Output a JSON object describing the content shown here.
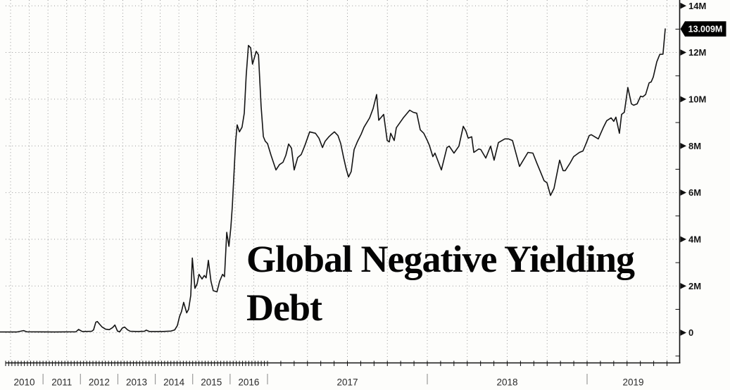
{
  "title": "Global Negative Yielding\nDebt",
  "last_price": {
    "label": "13.009M",
    "value": 13.009
  },
  "colors": {
    "background": "#fdfdfb",
    "line": "#141414",
    "grid": "#979797",
    "axis": "#111111",
    "flag_bg": "#000000",
    "flag_text": "#ffffff",
    "year_separator": "#9a9a9a"
  },
  "y_axis": {
    "major_ticks": [
      {
        "v": 0,
        "label": "0"
      },
      {
        "v": 2,
        "label": "2M"
      },
      {
        "v": 4,
        "label": "4M"
      },
      {
        "v": 6,
        "label": "6M"
      },
      {
        "v": 8,
        "label": "8M"
      },
      {
        "v": 10,
        "label": "10M"
      },
      {
        "v": 12,
        "label": "12M"
      },
      {
        "v": 14,
        "label": "14M"
      }
    ],
    "minor_tick_values": [
      -1,
      1,
      3,
      5,
      7,
      9,
      11,
      13
    ]
  },
  "x_axis": {
    "years": [
      "2010",
      "2011",
      "2012",
      "2013",
      "2014",
      "2015",
      "2016",
      "2017",
      "2018",
      "2019"
    ]
  },
  "chart_data": {
    "type": "line",
    "title": "Global Negative Yielding Debt",
    "ylabel": "",
    "xlabel": "",
    "unit": "M",
    "ylim": [
      -1.3,
      14.25
    ],
    "xlim": [
      2009.85,
      2019.58
    ],
    "grid": "dotted",
    "legend": "none",
    "scale_note": "x compressed before 2017, expanded 2017-2019",
    "last_price": {
      "label": "13.009M",
      "value": 13.009
    },
    "series": [
      {
        "name": "Global Negative Yielding Debt",
        "points": [
          [
            2009.85,
            0.03
          ],
          [
            2010.3,
            0.03
          ],
          [
            2010.48,
            0.09
          ],
          [
            2010.56,
            0.04
          ],
          [
            2011.3,
            0.03
          ],
          [
            2011.88,
            0.04
          ],
          [
            2011.95,
            0.14
          ],
          [
            2012.05,
            0.05
          ],
          [
            2012.3,
            0.06
          ],
          [
            2012.35,
            0.12
          ],
          [
            2012.41,
            0.45
          ],
          [
            2012.45,
            0.48
          ],
          [
            2012.52,
            0.35
          ],
          [
            2012.58,
            0.24
          ],
          [
            2012.67,
            0.15
          ],
          [
            2012.77,
            0.13
          ],
          [
            2012.86,
            0.22
          ],
          [
            2012.92,
            0.33
          ],
          [
            2012.99,
            0.07
          ],
          [
            2013.05,
            0.04
          ],
          [
            2013.12,
            0.2
          ],
          [
            2013.18,
            0.24
          ],
          [
            2013.26,
            0.12
          ],
          [
            2013.33,
            0.06
          ],
          [
            2013.52,
            0.05
          ],
          [
            2013.71,
            0.06
          ],
          [
            2013.76,
            0.11
          ],
          [
            2013.84,
            0.05
          ],
          [
            2014.18,
            0.05
          ],
          [
            2014.42,
            0.07
          ],
          [
            2014.52,
            0.12
          ],
          [
            2014.59,
            0.3
          ],
          [
            2014.65,
            0.7
          ],
          [
            2014.7,
            0.9
          ],
          [
            2014.76,
            1.3
          ],
          [
            2014.84,
            0.85
          ],
          [
            2014.89,
            1.0
          ],
          [
            2014.95,
            1.6
          ],
          [
            2014.99,
            3.2
          ],
          [
            2015.06,
            1.9
          ],
          [
            2015.12,
            2.1
          ],
          [
            2015.17,
            2.5
          ],
          [
            2015.25,
            2.3
          ],
          [
            2015.31,
            2.45
          ],
          [
            2015.36,
            2.35
          ],
          [
            2015.42,
            3.1
          ],
          [
            2015.49,
            2.2
          ],
          [
            2015.55,
            1.8
          ],
          [
            2015.65,
            1.75
          ],
          [
            2015.72,
            2.2
          ],
          [
            2015.8,
            2.5
          ],
          [
            2015.85,
            2.4
          ],
          [
            2015.91,
            4.3
          ],
          [
            2015.97,
            3.7
          ],
          [
            2016.02,
            4.5
          ],
          [
            2016.06,
            5.4
          ],
          [
            2016.12,
            7.3
          ],
          [
            2016.15,
            8.2
          ],
          [
            2016.19,
            8.9
          ],
          [
            2016.25,
            8.6
          ],
          [
            2016.32,
            8.8
          ],
          [
            2016.38,
            9.4
          ],
          [
            2016.43,
            11.0
          ],
          [
            2016.49,
            12.3
          ],
          [
            2016.55,
            12.2
          ],
          [
            2016.6,
            11.5
          ],
          [
            2016.7,
            12.05
          ],
          [
            2016.76,
            11.9
          ],
          [
            2016.83,
            9.7
          ],
          [
            2016.89,
            8.4
          ],
          [
            2016.94,
            8.2
          ],
          [
            2017.0,
            8.1
          ],
          [
            2017.022,
            7.6
          ],
          [
            2017.053,
            6.97
          ],
          [
            2017.075,
            7.2
          ],
          [
            2017.097,
            7.3
          ],
          [
            2017.115,
            7.6
          ],
          [
            2017.132,
            8.08
          ],
          [
            2017.15,
            7.9
          ],
          [
            2017.167,
            6.97
          ],
          [
            2017.189,
            7.5
          ],
          [
            2017.211,
            7.63
          ],
          [
            2017.233,
            8.0
          ],
          [
            2017.264,
            8.6
          ],
          [
            2017.3,
            8.54
          ],
          [
            2017.322,
            8.33
          ],
          [
            2017.344,
            7.93
          ],
          [
            2017.361,
            8.2
          ],
          [
            2017.383,
            8.38
          ],
          [
            2017.401,
            8.5
          ],
          [
            2017.419,
            8.6
          ],
          [
            2017.441,
            8.44
          ],
          [
            2017.458,
            8.1
          ],
          [
            2017.476,
            7.5
          ],
          [
            2017.493,
            7.0
          ],
          [
            2017.507,
            6.67
          ],
          [
            2017.524,
            6.9
          ],
          [
            2017.542,
            7.84
          ],
          [
            2017.564,
            8.2
          ],
          [
            2017.586,
            8.5
          ],
          [
            2017.604,
            8.8
          ],
          [
            2017.639,
            9.2
          ],
          [
            2017.661,
            9.6
          ],
          [
            2017.683,
            10.2
          ],
          [
            2017.696,
            9.1
          ],
          [
            2017.727,
            9.35
          ],
          [
            2017.749,
            8.23
          ],
          [
            2017.762,
            8.17
          ],
          [
            2017.771,
            8.54
          ],
          [
            2017.793,
            8.23
          ],
          [
            2017.806,
            8.78
          ],
          [
            2017.85,
            9.2
          ],
          [
            2017.89,
            9.53
          ],
          [
            2017.912,
            9.44
          ],
          [
            2017.934,
            9.4
          ],
          [
            2017.956,
            8.69
          ],
          [
            2017.978,
            8.54
          ],
          [
            2018.0,
            8.23
          ],
          [
            2018.013,
            8.02
          ],
          [
            2018.035,
            7.54
          ],
          [
            2018.048,
            7.69
          ],
          [
            2018.088,
            6.97
          ],
          [
            2018.123,
            7.93
          ],
          [
            2018.137,
            7.99
          ],
          [
            2018.167,
            7.69
          ],
          [
            2018.198,
            7.99
          ],
          [
            2018.225,
            8.84
          ],
          [
            2018.242,
            8.63
          ],
          [
            2018.256,
            8.33
          ],
          [
            2018.278,
            8.39
          ],
          [
            2018.291,
            7.72
          ],
          [
            2018.322,
            7.87
          ],
          [
            2018.335,
            7.84
          ],
          [
            2018.366,
            7.48
          ],
          [
            2018.396,
            7.99
          ],
          [
            2018.418,
            7.39
          ],
          [
            2018.445,
            8.14
          ],
          [
            2018.485,
            8.3
          ],
          [
            2018.507,
            8.3
          ],
          [
            2018.533,
            8.23
          ],
          [
            2018.577,
            7.12
          ],
          [
            2018.63,
            7.72
          ],
          [
            2018.661,
            7.69
          ],
          [
            2018.687,
            7.24
          ],
          [
            2018.709,
            6.88
          ],
          [
            2018.731,
            6.51
          ],
          [
            2018.749,
            6.42
          ],
          [
            2018.771,
            5.88
          ],
          [
            2018.793,
            6.18
          ],
          [
            2018.828,
            7.39
          ],
          [
            2018.85,
            6.94
          ],
          [
            2018.863,
            6.94
          ],
          [
            2018.894,
            7.27
          ],
          [
            2018.916,
            7.54
          ],
          [
            2018.952,
            7.72
          ],
          [
            2018.974,
            7.78
          ],
          [
            2018.996,
            8.14
          ],
          [
            2019.013,
            8.44
          ],
          [
            2019.026,
            8.48
          ],
          [
            2019.048,
            8.39
          ],
          [
            2019.07,
            8.3
          ],
          [
            2019.101,
            8.78
          ],
          [
            2019.123,
            9.08
          ],
          [
            2019.15,
            9.2
          ],
          [
            2019.167,
            9.05
          ],
          [
            2019.18,
            9.23
          ],
          [
            2019.202,
            8.54
          ],
          [
            2019.216,
            9.35
          ],
          [
            2019.233,
            9.44
          ],
          [
            2019.255,
            10.5
          ],
          [
            2019.277,
            9.8
          ],
          [
            2019.291,
            9.74
          ],
          [
            2019.313,
            9.8
          ],
          [
            2019.335,
            10.13
          ],
          [
            2019.348,
            10.1
          ],
          [
            2019.366,
            10.2
          ],
          [
            2019.388,
            10.7
          ],
          [
            2019.401,
            10.74
          ],
          [
            2019.414,
            10.95
          ],
          [
            2019.436,
            11.6
          ],
          [
            2019.455,
            11.92
          ],
          [
            2019.475,
            11.93
          ],
          [
            2019.489,
            13.009
          ]
        ]
      }
    ]
  }
}
